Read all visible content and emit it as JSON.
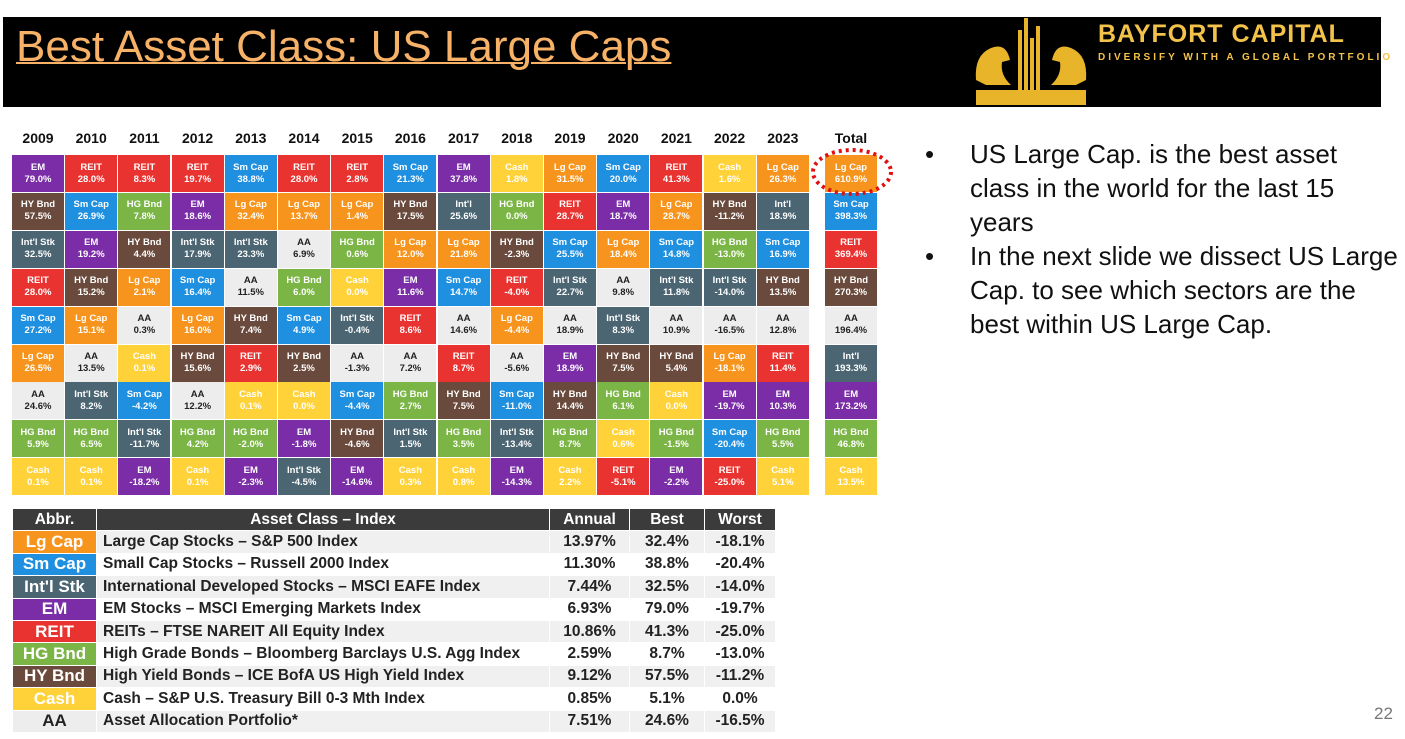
{
  "header": {
    "title": "Best Asset Class: US Large Caps",
    "brand": "BAYFORT CAPITAL",
    "tagline": "DIVERSIFY WITH A GLOBAL PORTFOLIO"
  },
  "palette": {
    "Lg Cap": [
      "#f7941d",
      "#ffffff"
    ],
    "Sm Cap": [
      "#1f8fe0",
      "#ffffff"
    ],
    "Int'l Stk": [
      "#4b6573",
      "#ffffff"
    ],
    "Int'l": [
      "#4b6573",
      "#ffffff"
    ],
    "EM": [
      "#7a2da6",
      "#ffffff"
    ],
    "REIT": [
      "#e83330",
      "#ffffff"
    ],
    "HG Bnd": [
      "#7ab545",
      "#ffffff"
    ],
    "HY Bnd": [
      "#6a4a3c",
      "#ffffff"
    ],
    "Cash": [
      "#ffd23a",
      "#ffffff"
    ],
    "AA": [
      "#ededed",
      "#222222"
    ]
  },
  "grid": {
    "headers": [
      "2009",
      "2010",
      "2011",
      "2012",
      "2013",
      "2014",
      "2015",
      "2016",
      "2017",
      "2018",
      "2019",
      "2020",
      "2021",
      "2022",
      "2023",
      "Total"
    ],
    "columns": [
      [
        [
          "EM",
          "79.0%"
        ],
        [
          "HY Bnd",
          "57.5%"
        ],
        [
          "Int'l Stk",
          "32.5%"
        ],
        [
          "REIT",
          "28.0%"
        ],
        [
          "Sm Cap",
          "27.2%"
        ],
        [
          "Lg Cap",
          "26.5%"
        ],
        [
          "AA",
          "24.6%"
        ],
        [
          "HG Bnd",
          "5.9%"
        ],
        [
          "Cash",
          "0.1%"
        ]
      ],
      [
        [
          "REIT",
          "28.0%"
        ],
        [
          "Sm Cap",
          "26.9%"
        ],
        [
          "EM",
          "19.2%"
        ],
        [
          "HY Bnd",
          "15.2%"
        ],
        [
          "Lg Cap",
          "15.1%"
        ],
        [
          "AA",
          "13.5%"
        ],
        [
          "Int'l Stk",
          "8.2%"
        ],
        [
          "HG Bnd",
          "6.5%"
        ],
        [
          "Cash",
          "0.1%"
        ]
      ],
      [
        [
          "REIT",
          "8.3%"
        ],
        [
          "HG Bnd",
          "7.8%"
        ],
        [
          "HY Bnd",
          "4.4%"
        ],
        [
          "Lg Cap",
          "2.1%"
        ],
        [
          "AA",
          "0.3%"
        ],
        [
          "Cash",
          "0.1%"
        ],
        [
          "Sm Cap",
          "-4.2%"
        ],
        [
          "Int'l Stk",
          "-11.7%"
        ],
        [
          "EM",
          "-18.2%"
        ]
      ],
      [
        [
          "REIT",
          "19.7%"
        ],
        [
          "EM",
          "18.6%"
        ],
        [
          "Int'l Stk",
          "17.9%"
        ],
        [
          "Sm Cap",
          "16.4%"
        ],
        [
          "Lg Cap",
          "16.0%"
        ],
        [
          "HY Bnd",
          "15.6%"
        ],
        [
          "AA",
          "12.2%"
        ],
        [
          "HG Bnd",
          "4.2%"
        ],
        [
          "Cash",
          "0.1%"
        ]
      ],
      [
        [
          "Sm Cap",
          "38.8%"
        ],
        [
          "Lg Cap",
          "32.4%"
        ],
        [
          "Int'l Stk",
          "23.3%"
        ],
        [
          "AA",
          "11.5%"
        ],
        [
          "HY Bnd",
          "7.4%"
        ],
        [
          "REIT",
          "2.9%"
        ],
        [
          "Cash",
          "0.1%"
        ],
        [
          "HG Bnd",
          "-2.0%"
        ],
        [
          "EM",
          "-2.3%"
        ]
      ],
      [
        [
          "REIT",
          "28.0%"
        ],
        [
          "Lg Cap",
          "13.7%"
        ],
        [
          "AA",
          "6.9%"
        ],
        [
          "HG Bnd",
          "6.0%"
        ],
        [
          "Sm Cap",
          "4.9%"
        ],
        [
          "HY Bnd",
          "2.5%"
        ],
        [
          "Cash",
          "0.0%"
        ],
        [
          "EM",
          "-1.8%"
        ],
        [
          "Int'l Stk",
          "-4.5%"
        ]
      ],
      [
        [
          "REIT",
          "2.8%"
        ],
        [
          "Lg Cap",
          "1.4%"
        ],
        [
          "HG Bnd",
          "0.6%"
        ],
        [
          "Cash",
          "0.0%"
        ],
        [
          "Int'l Stk",
          "-0.4%"
        ],
        [
          "AA",
          "-1.3%"
        ],
        [
          "Sm Cap",
          "-4.4%"
        ],
        [
          "HY Bnd",
          "-4.6%"
        ],
        [
          "EM",
          "-14.6%"
        ]
      ],
      [
        [
          "Sm Cap",
          "21.3%"
        ],
        [
          "HY Bnd",
          "17.5%"
        ],
        [
          "Lg Cap",
          "12.0%"
        ],
        [
          "EM",
          "11.6%"
        ],
        [
          "REIT",
          "8.6%"
        ],
        [
          "AA",
          "7.2%"
        ],
        [
          "HG Bnd",
          "2.7%"
        ],
        [
          "Int'l Stk",
          "1.5%"
        ],
        [
          "Cash",
          "0.3%"
        ]
      ],
      [
        [
          "EM",
          "37.8%"
        ],
        [
          "Int'l",
          "25.6%"
        ],
        [
          "Lg Cap",
          "21.8%"
        ],
        [
          "Sm Cap",
          "14.7%"
        ],
        [
          "AA",
          "14.6%"
        ],
        [
          "REIT",
          "8.7%"
        ],
        [
          "HY Bnd",
          "7.5%"
        ],
        [
          "HG Bnd",
          "3.5%"
        ],
        [
          "Cash",
          "0.8%"
        ]
      ],
      [
        [
          "Cash",
          "1.8%"
        ],
        [
          "HG Bnd",
          "0.0%"
        ],
        [
          "HY Bnd",
          "-2.3%"
        ],
        [
          "REIT",
          "-4.0%"
        ],
        [
          "Lg Cap",
          "-4.4%"
        ],
        [
          "AA",
          "-5.6%"
        ],
        [
          "Sm Cap",
          "-11.0%"
        ],
        [
          "Int'l Stk",
          "-13.4%"
        ],
        [
          "EM",
          "-14.3%"
        ]
      ],
      [
        [
          "Lg Cap",
          "31.5%"
        ],
        [
          "REIT",
          "28.7%"
        ],
        [
          "Sm Cap",
          "25.5%"
        ],
        [
          "Int'l Stk",
          "22.7%"
        ],
        [
          "AA",
          "18.9%"
        ],
        [
          "EM",
          "18.9%"
        ],
        [
          "HY Bnd",
          "14.4%"
        ],
        [
          "HG Bnd",
          "8.7%"
        ],
        [
          "Cash",
          "2.2%"
        ]
      ],
      [
        [
          "Sm Cap",
          "20.0%"
        ],
        [
          "EM",
          "18.7%"
        ],
        [
          "Lg Cap",
          "18.4%"
        ],
        [
          "AA",
          "9.8%"
        ],
        [
          "Int'l Stk",
          "8.3%"
        ],
        [
          "HY Bnd",
          "7.5%"
        ],
        [
          "HG Bnd",
          "6.1%"
        ],
        [
          "Cash",
          "0.6%"
        ],
        [
          "REIT",
          "-5.1%"
        ]
      ],
      [
        [
          "REIT",
          "41.3%"
        ],
        [
          "Lg Cap",
          "28.7%"
        ],
        [
          "Sm Cap",
          "14.8%"
        ],
        [
          "Int'l Stk",
          "11.8%"
        ],
        [
          "AA",
          "10.9%"
        ],
        [
          "HY Bnd",
          "5.4%"
        ],
        [
          "Cash",
          "0.0%"
        ],
        [
          "HG Bnd",
          "-1.5%"
        ],
        [
          "EM",
          "-2.2%"
        ]
      ],
      [
        [
          "Cash",
          "1.6%"
        ],
        [
          "HY Bnd",
          "-11.2%"
        ],
        [
          "HG Bnd",
          "-13.0%"
        ],
        [
          "Int'l Stk",
          "-14.0%"
        ],
        [
          "AA",
          "-16.5%"
        ],
        [
          "Lg Cap",
          "-18.1%"
        ],
        [
          "EM",
          "-19.7%"
        ],
        [
          "Sm Cap",
          "-20.4%"
        ],
        [
          "REIT",
          "-25.0%"
        ]
      ],
      [
        [
          "Lg Cap",
          "26.3%"
        ],
        [
          "Int'l",
          "18.9%"
        ],
        [
          "Sm Cap",
          "16.9%"
        ],
        [
          "HY Bnd",
          "13.5%"
        ],
        [
          "AA",
          "12.8%"
        ],
        [
          "REIT",
          "11.4%"
        ],
        [
          "EM",
          "10.3%"
        ],
        [
          "HG Bnd",
          "5.5%"
        ],
        [
          "Cash",
          "5.1%"
        ]
      ],
      [
        [
          "Lg Cap",
          "610.9%"
        ],
        [
          "Sm Cap",
          "398.3%"
        ],
        [
          "REIT",
          "369.4%"
        ],
        [
          "HY Bnd",
          "270.3%"
        ],
        [
          "AA",
          "196.4%"
        ],
        [
          "Int'l",
          "193.3%"
        ],
        [
          "EM",
          "173.2%"
        ],
        [
          "HG Bnd",
          "46.8%"
        ],
        [
          "Cash",
          "13.5%"
        ]
      ]
    ]
  },
  "table": {
    "header": [
      "Abbr.",
      "Asset Class – Index",
      "Annual",
      "Best",
      "Worst"
    ],
    "rows": [
      [
        "Lg Cap",
        "Large Cap Stocks – S&P 500 Index",
        "13.97%",
        "32.4%",
        "-18.1%"
      ],
      [
        "Sm Cap",
        "Small Cap Stocks – Russell 2000 Index",
        "11.30%",
        "38.8%",
        "-20.4%"
      ],
      [
        "Int'l Stk",
        "International Developed Stocks – MSCI EAFE Index",
        "7.44%",
        "32.5%",
        "-14.0%"
      ],
      [
        "EM",
        "EM Stocks – MSCI Emerging Markets Index",
        "6.93%",
        "79.0%",
        "-19.7%"
      ],
      [
        "REIT",
        "REITs – FTSE NAREIT All Equity Index",
        "10.86%",
        "41.3%",
        "-25.0%"
      ],
      [
        "HG Bnd",
        "High Grade Bonds – Bloomberg Barclays U.S. Agg Index",
        "2.59%",
        "8.7%",
        "-13.0%"
      ],
      [
        "HY Bnd",
        "High Yield Bonds – ICE BofA US High Yield Index",
        "9.12%",
        "57.5%",
        "-11.2%"
      ],
      [
        "Cash",
        "Cash – S&P U.S. Treasury Bill 0-3 Mth Index",
        "0.85%",
        "5.1%",
        "0.0%"
      ],
      [
        "AA",
        "Asset Allocation Portfolio*",
        "7.51%",
        "24.6%",
        "-16.5%"
      ]
    ]
  },
  "bullets": [
    "US Large Cap. is the best asset class in the world for the last 15 years",
    "In the next slide we dissect US Large Cap. to see which sectors are the best within US Large Cap."
  ],
  "page_number": "22"
}
